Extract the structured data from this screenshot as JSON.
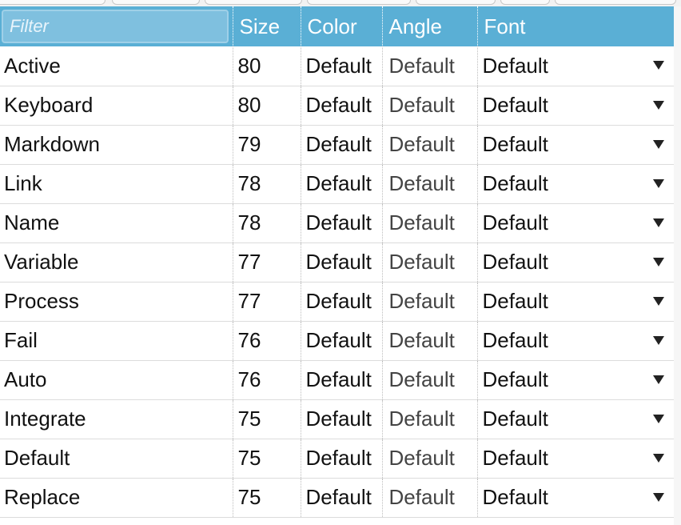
{
  "header": {
    "filter_placeholder": "Filter",
    "columns": {
      "size": "Size",
      "color": "Color",
      "angle": "Angle",
      "font": "Font"
    }
  },
  "rows": [
    {
      "name": "Active",
      "size": "80",
      "color": "Default",
      "angle": "Default",
      "font": "Default"
    },
    {
      "name": "Keyboard",
      "size": "80",
      "color": "Default",
      "angle": "Default",
      "font": "Default"
    },
    {
      "name": "Markdown",
      "size": "79",
      "color": "Default",
      "angle": "Default",
      "font": "Default"
    },
    {
      "name": "Link",
      "size": "78",
      "color": "Default",
      "angle": "Default",
      "font": "Default"
    },
    {
      "name": "Name",
      "size": "78",
      "color": "Default",
      "angle": "Default",
      "font": "Default"
    },
    {
      "name": "Variable",
      "size": "77",
      "color": "Default",
      "angle": "Default",
      "font": "Default"
    },
    {
      "name": "Process",
      "size": "77",
      "color": "Default",
      "angle": "Default",
      "font": "Default"
    },
    {
      "name": "Fail",
      "size": "76",
      "color": "Default",
      "angle": "Default",
      "font": "Default"
    },
    {
      "name": "Auto",
      "size": "76",
      "color": "Default",
      "angle": "Default",
      "font": "Default"
    },
    {
      "name": "Integrate",
      "size": "75",
      "color": "Default",
      "angle": "Default",
      "font": "Default"
    },
    {
      "name": "Default",
      "size": "75",
      "color": "Default",
      "angle": "Default",
      "font": "Default"
    },
    {
      "name": "Replace",
      "size": "75",
      "color": "Default",
      "angle": "Default",
      "font": "Default"
    }
  ],
  "icons": {
    "font_dropdown": "chevron-down-icon"
  },
  "colors": {
    "header_bg": "#5aafd5",
    "filter_bg": "#7fc0df",
    "row_border": "#dcdcdc"
  }
}
